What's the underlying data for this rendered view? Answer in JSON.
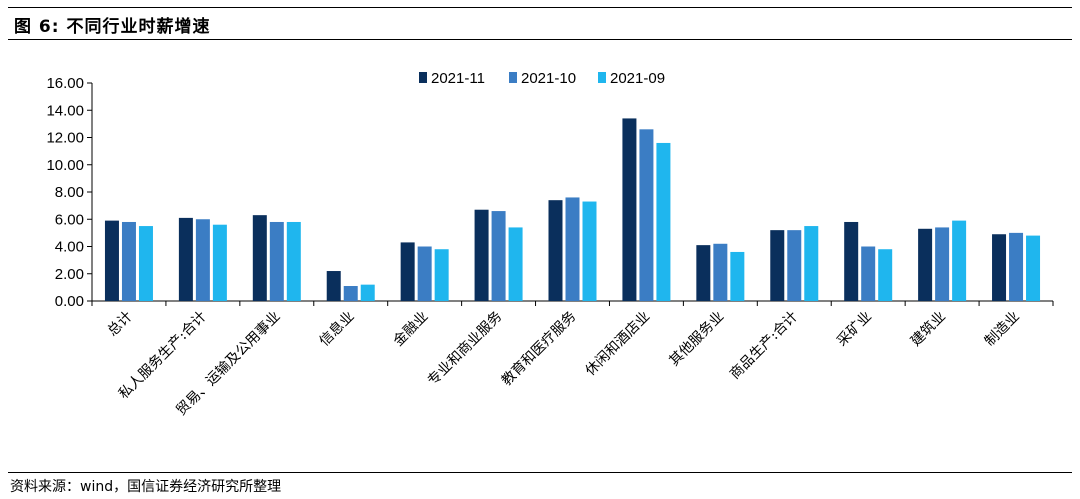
{
  "figure": {
    "title": "图 6:  不同行业时薪增速",
    "source": "资料来源：wind，国信证券经济研究所整理"
  },
  "colors": {
    "2021-11": "#0a2f5c",
    "2021-10": "#3b7dc4",
    "2021-09": "#1fb6ee"
  },
  "chart_data": {
    "type": "bar",
    "categories": [
      "总计",
      "私人服务生产:合计",
      "贸易、运输及公用事业",
      "信息业",
      "金融业",
      "专业和商业服务",
      "教育和医疗服务",
      "休闲和酒店业",
      "其他服务业",
      "商品生产:合计",
      "采矿业",
      "建筑业",
      "制造业"
    ],
    "series": [
      {
        "name": "2021-11",
        "values": [
          5.9,
          6.1,
          6.3,
          2.2,
          4.3,
          6.7,
          7.4,
          13.4,
          4.1,
          5.2,
          5.8,
          5.3,
          4.9
        ]
      },
      {
        "name": "2021-10",
        "values": [
          5.8,
          6.0,
          5.8,
          1.1,
          4.0,
          6.6,
          7.6,
          12.6,
          4.2,
          5.2,
          4.0,
          5.4,
          5.0
        ]
      },
      {
        "name": "2021-09",
        "values": [
          5.5,
          5.6,
          5.8,
          1.2,
          3.8,
          5.4,
          7.3,
          11.6,
          3.6,
          5.5,
          3.8,
          5.9,
          4.8
        ]
      }
    ],
    "ylim": [
      0,
      16
    ],
    "yticks": [
      "0.00",
      "2.00",
      "4.00",
      "6.00",
      "8.00",
      "10.00",
      "12.00",
      "14.00",
      "16.00"
    ],
    "grid": false,
    "legend_position": "top-center"
  }
}
